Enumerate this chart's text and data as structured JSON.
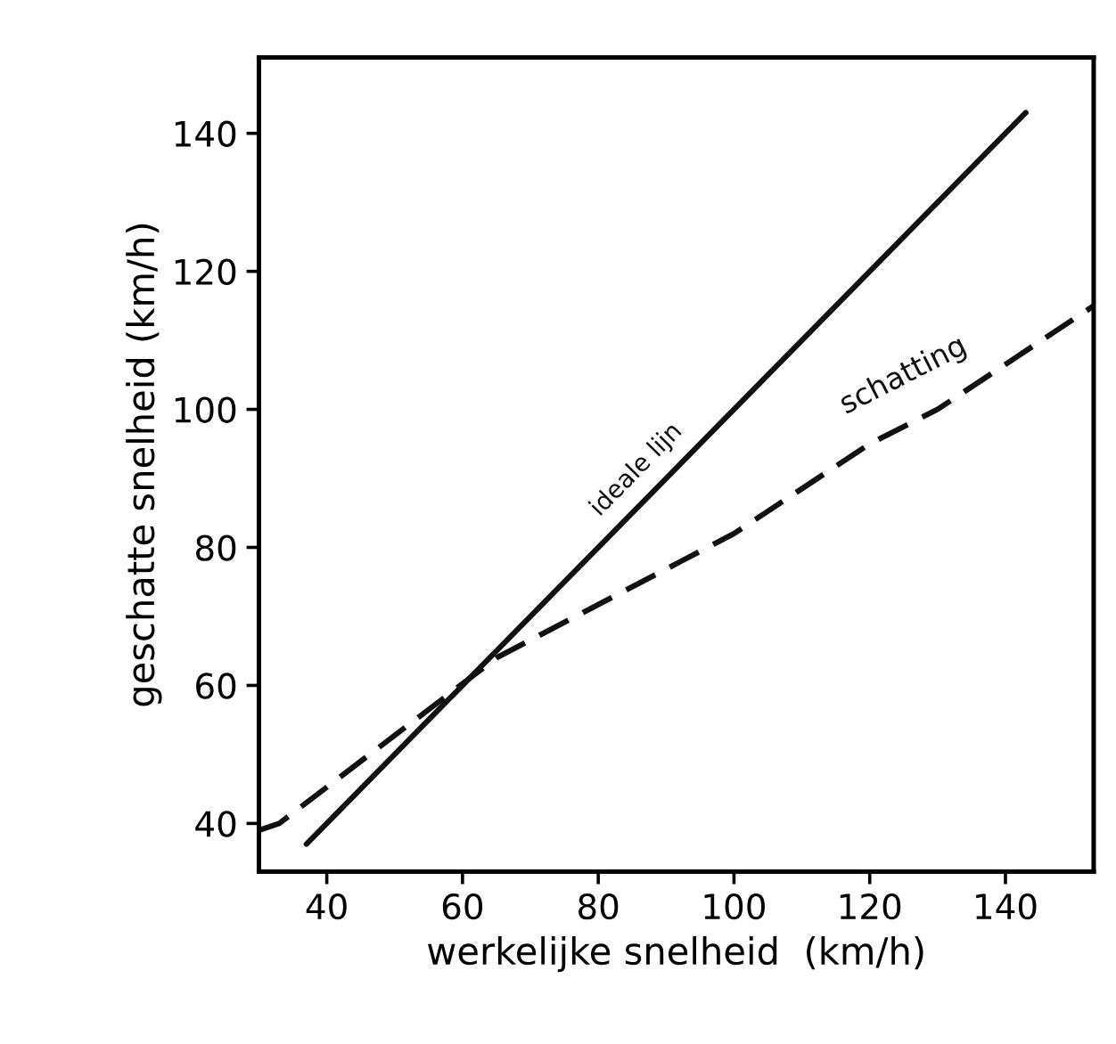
{
  "chart_data": {
    "type": "line",
    "xlabel": "werkelijke snelheid  (km/h)",
    "ylabel": "geschatte snelheid (km/h)",
    "xlim": [
      30,
      153
    ],
    "ylim": [
      33,
      151
    ],
    "xticks": [
      40,
      60,
      80,
      100,
      120,
      140
    ],
    "yticks": [
      40,
      60,
      80,
      100,
      120,
      140
    ],
    "grid": false,
    "legend": false,
    "marker": "none",
    "series": [
      {
        "name": "ideale lijn",
        "color": "#111111",
        "line_style": "solid",
        "x": [
          37,
          143
        ],
        "values": [
          37,
          143
        ]
      },
      {
        "name": "schatting",
        "color": "#111111",
        "line_style": "dashed",
        "x": [
          30,
          33,
          65,
          100,
          120,
          130,
          153
        ],
        "values": [
          39,
          40,
          64,
          82,
          95,
          100,
          115
        ]
      }
    ]
  }
}
